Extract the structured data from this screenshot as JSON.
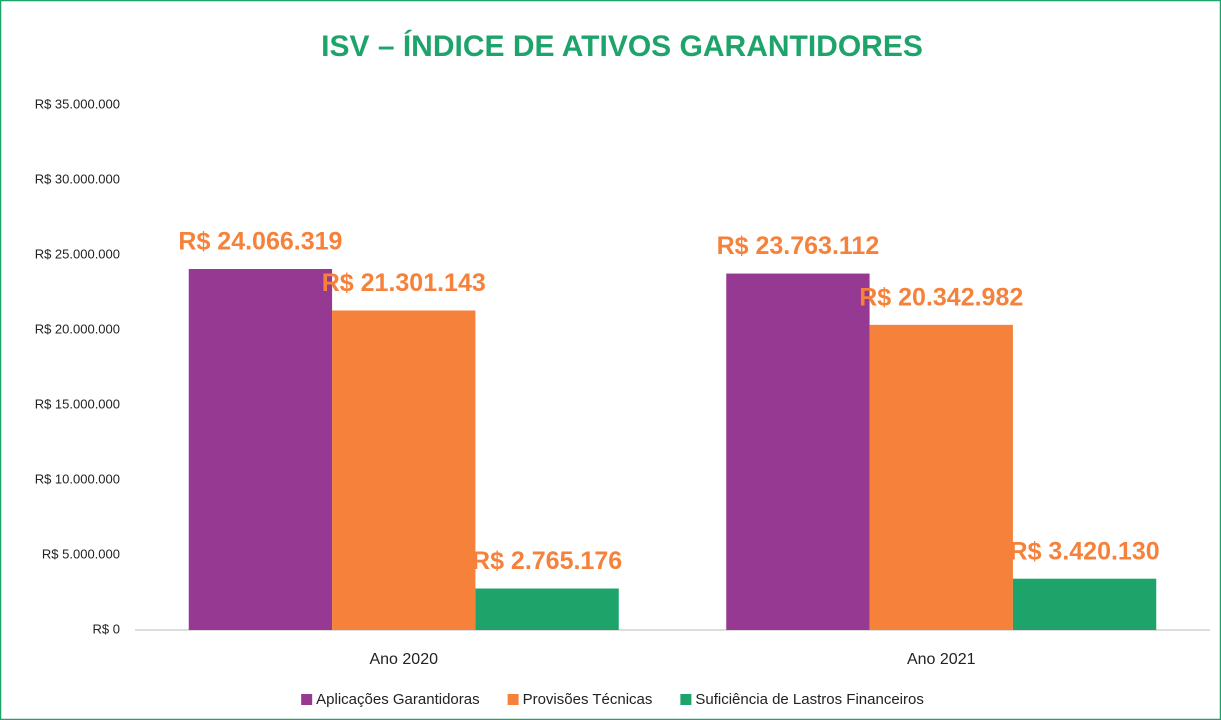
{
  "chart_data": {
    "type": "bar",
    "title": "ISV – ÍNDICE DE ATIVOS GARANTIDORES",
    "categories": [
      "Ano 2020",
      "Ano 2021"
    ],
    "series": [
      {
        "name": "Aplicações Garantidoras",
        "color": "#953993",
        "values": [
          24066319,
          23763112
        ],
        "value_labels": [
          "R$ 24.066.319",
          "R$ 23.763.112"
        ]
      },
      {
        "name": "Provisões Técnicas",
        "color": "#f5813a",
        "values": [
          21301143,
          20342982
        ],
        "value_labels": [
          "R$ 21.301.143",
          "R$ 20.342.982"
        ]
      },
      {
        "name": "Suficiência de Lastros Financeiros",
        "color": "#1ea46b",
        "values": [
          2765176,
          3420130
        ],
        "value_labels": [
          "R$ 2.765.176",
          "R$ 3.420.130"
        ]
      }
    ],
    "ylim": [
      0,
      35000000
    ],
    "yticks": [
      {
        "value": 0,
        "label": "R$ 0"
      },
      {
        "value": 5000000,
        "label": "R$ 5.000.000"
      },
      {
        "value": 10000000,
        "label": "R$ 10.000.000"
      },
      {
        "value": 15000000,
        "label": "R$ 15.000.000"
      },
      {
        "value": 20000000,
        "label": "R$ 20.000.000"
      },
      {
        "value": 25000000,
        "label": "R$ 25.000.000"
      },
      {
        "value": 30000000,
        "label": "R$ 30.000.000"
      },
      {
        "value": 35000000,
        "label": "R$ 35.000.000"
      }
    ],
    "grid": false,
    "legend": "bottom"
  }
}
